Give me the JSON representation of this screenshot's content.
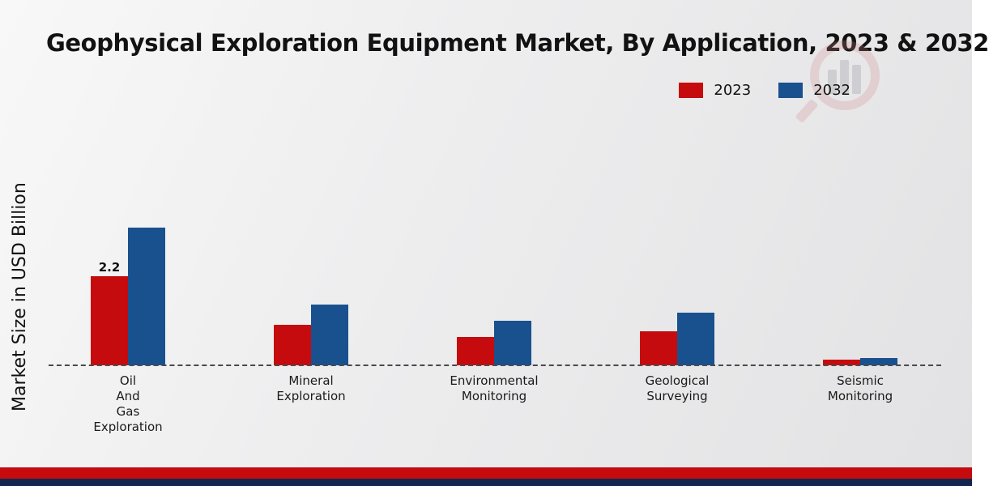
{
  "title": "Geophysical Exploration Equipment Market, By Application, 2023 & 2032",
  "y_axis_label": "Market Size in USD Billion",
  "legend": {
    "items": [
      {
        "label": "2023",
        "color": "#c50b0e"
      },
      {
        "label": "2032",
        "color": "#19518f"
      }
    ]
  },
  "chart_data": {
    "type": "bar",
    "title": "Geophysical Exploration Equipment Market, By Application, 2023 & 2032",
    "ylabel": "Market Size in USD Billion",
    "ylim": [
      0,
      3.5
    ],
    "grid": false,
    "baseline_style": "dashed",
    "legend_position": "top-right",
    "categories": [
      {
        "name": "Oil And Gas Exploration",
        "lines": [
          "Oil",
          "And",
          "Gas",
          "Exploration"
        ]
      },
      {
        "name": "Mineral Exploration",
        "lines": [
          "Mineral",
          "Exploration"
        ]
      },
      {
        "name": "Environmental Monitoring",
        "lines": [
          "Environmental",
          "Monitoring"
        ]
      },
      {
        "name": "Geological Surveying",
        "lines": [
          "Geological",
          "Surveying"
        ]
      },
      {
        "name": "Seismic Monitoring",
        "lines": [
          "Seismic",
          "Monitoring"
        ]
      }
    ],
    "series": [
      {
        "name": "2023",
        "color": "#c50b0e",
        "values": [
          2.2,
          1.0,
          0.7,
          0.85,
          0.15
        ]
      },
      {
        "name": "2032",
        "color": "#19518f",
        "values": [
          3.4,
          1.5,
          1.1,
          1.3,
          0.18
        ]
      }
    ],
    "annotations": [
      {
        "series": "2023",
        "category_index": 0,
        "text": "2.2"
      }
    ]
  },
  "footer": {
    "red_strip_color": "#c50b0e",
    "navy_strip_color": "#12264f"
  }
}
